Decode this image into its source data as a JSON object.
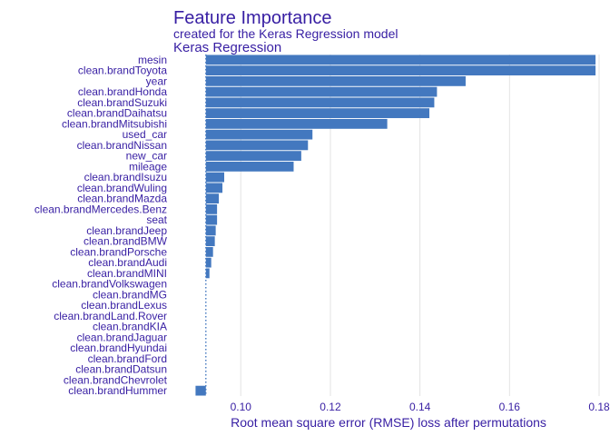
{
  "title": "Feature Importance",
  "subtitle": "created for the Keras Regression model",
  "chart_data": {
    "type": "bar",
    "orientation": "horizontal",
    "panel_title": "Keras Regression",
    "xlabel": "Root mean square error (RMSE) loss after permutations",
    "ylabel": "",
    "baseline": 0.0922,
    "xlim": [
      0.0888,
      0.18
    ],
    "xticks": [
      "0.10",
      "0.12",
      "0.14",
      "0.16",
      "0.18"
    ],
    "grid": true,
    "categories": [
      "mesin",
      "clean.brandToyota",
      "year",
      "clean.brandHonda",
      "clean.brandSuzuki",
      "clean.brandDaihatsu",
      "clean.brandMitsubishi",
      "used_car",
      "clean.brandNissan",
      "new_car",
      "mileage",
      "clean.brandIsuzu",
      "clean.brandWuling",
      "clean.brandMazda",
      "clean.brandMercedes.Benz",
      "seat",
      "clean.brandJeep",
      "clean.brandBMW",
      "clean.brandPorsche",
      "clean.brandAudi",
      "clean.brandMINI",
      "clean.brandVolkswagen",
      "clean.brandMG",
      "clean.brandLexus",
      "clean.brandLand.Rover",
      "clean.brandKIA",
      "clean.brandJaguar",
      "clean.brandHyundai",
      "clean.brandFord",
      "clean.brandDatsun",
      "clean.brandChevrolet",
      "clean.brandHummer"
    ],
    "values": [
      0.1792,
      0.1792,
      0.1502,
      0.1438,
      0.1432,
      0.1421,
      0.1327,
      0.116,
      0.115,
      0.1135,
      0.1118,
      0.0963,
      0.0959,
      0.0951,
      0.0947,
      0.0947,
      0.0944,
      0.0942,
      0.0938,
      0.0934,
      0.093,
      0.0922,
      0.0922,
      0.0922,
      0.0922,
      0.0922,
      0.0922,
      0.0922,
      0.0922,
      0.0922,
      0.0922,
      0.0899
    ],
    "colors": {
      "bar": "#4378bf",
      "text": "#371ea3",
      "grid": "#e3e3e3"
    }
  }
}
